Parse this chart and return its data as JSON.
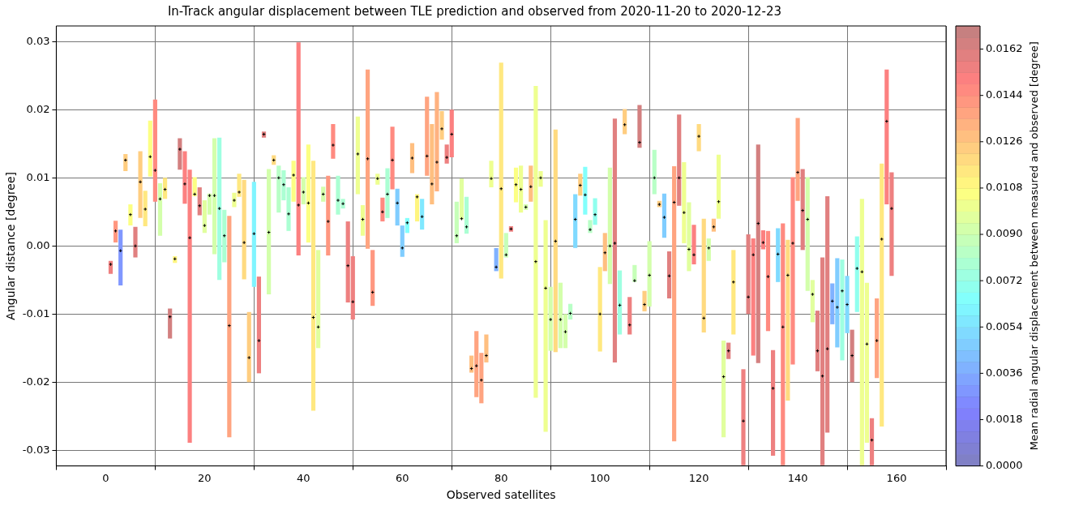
{
  "chart_data": {
    "type": "bar",
    "title": "In-Track angular displacement between TLE prediction and observed from 2020-11-20 to 2020-12-23",
    "xlabel": "Observed satellites",
    "ylabel": "Angular distance [degree]",
    "clabel": "Mean radial angular displacement between measured and observed [degree]",
    "xlim": [
      0,
      160
    ],
    "xticks": [
      0,
      20,
      40,
      60,
      80,
      100,
      120,
      140,
      160
    ],
    "ylim": [
      -0.0323,
      0.0323
    ],
    "yticks": [
      -0.03,
      -0.02,
      -0.01,
      {
        "value": 0,
        "label": "0.00"
      },
      0.01,
      0.02,
      0.03
    ],
    "clim": [
      0,
      0.0171
    ],
    "cticks": [
      {
        "value": 0,
        "label": "0.0000"
      },
      0.0018,
      0.0036,
      0.0054,
      0.0072,
      {
        "value": 0.009,
        "label": "0.0090"
      },
      0.0108,
      0.0126,
      0.0144,
      0.0162
    ],
    "grid": true,
    "legend": false,
    "marker": "cross",
    "series": [
      {
        "type": "bar",
        "x": [
          1,
          2,
          3,
          4,
          5,
          6,
          7,
          8,
          9,
          10,
          11,
          12,
          13,
          14,
          15,
          16,
          17,
          18,
          19,
          20,
          21,
          22,
          23,
          24,
          25,
          26,
          27,
          28,
          29,
          30,
          31,
          32,
          33,
          34,
          35,
          36,
          37,
          38,
          39,
          40,
          41,
          42,
          43,
          44,
          45,
          46,
          47,
          48,
          49,
          50,
          51,
          52,
          53,
          54,
          55,
          56,
          57,
          58,
          59,
          60,
          61,
          62,
          63,
          64,
          65,
          66,
          67,
          68,
          69,
          70,
          71,
          72,
          73,
          74,
          75,
          76,
          77,
          78,
          79,
          80,
          81,
          82,
          83,
          84,
          85,
          86,
          87,
          88,
          89,
          90,
          91,
          92,
          93,
          94,
          95,
          96,
          97,
          98,
          99,
          100,
          101,
          102,
          103,
          104,
          105,
          106,
          107,
          108,
          109,
          110,
          111,
          112,
          113,
          114,
          115,
          116,
          117,
          118,
          119,
          120,
          121,
          122,
          123,
          124,
          125,
          126,
          127,
          129,
          130,
          131,
          132,
          133,
          134,
          135,
          136,
          137,
          138,
          139,
          140,
          141,
          142,
          143,
          144,
          145,
          146,
          147,
          148,
          149,
          150,
          151,
          152,
          153,
          154,
          155,
          156,
          157,
          158,
          159
        ],
        "base": [
          -0.0041,
          0.0005,
          -0.0058,
          0.011,
          0.003,
          -0.0017,
          0.0041,
          0.0029,
          0.0102,
          0.0065,
          0.0015,
          0.0069,
          -0.0136,
          -0.0025,
          0.0112,
          0.0062,
          -0.0289,
          0.0073,
          0.0045,
          0.0019,
          0.0046,
          -0.0012,
          -0.005,
          -0.0024,
          -0.0281,
          0.0057,
          0.0072,
          -0.0049,
          -0.02,
          -0.006,
          -0.0187,
          0.0159,
          -0.0071,
          0.0119,
          0.0049,
          0.0067,
          0.0022,
          0.0065,
          -0.0014,
          0.0061,
          0.0005,
          -0.0242,
          -0.015,
          0.0065,
          -0.0014,
          0.0128,
          0.0046,
          0.0055,
          -0.0083,
          -0.0108,
          0.0076,
          0.0015,
          -0.0004,
          -0.0088,
          0.009,
          0.0036,
          0.0041,
          0.0083,
          0.003,
          -0.0016,
          0.0019,
          0.0107,
          0.0036,
          0.0024,
          0.0103,
          0.0061,
          0.008,
          0.0156,
          0.0121,
          0.013,
          0.0004,
          0.0039,
          0.0018,
          -0.0186,
          -0.0222,
          -0.0231,
          -0.0171,
          0.0086,
          -0.0037,
          -0.0048,
          -0.0017,
          0.0021,
          0.0064,
          0.0049,
          0.0053,
          0.0065,
          -0.0223,
          0.0087,
          -0.0273,
          -0.0154,
          -0.0156,
          -0.015,
          -0.015,
          -0.0108,
          -0.0003,
          0.0074,
          0.0046,
          0.0019,
          0.0031,
          -0.0155,
          -0.0037,
          -0.0056,
          -0.0171,
          -0.013,
          0.0164,
          -0.013,
          -0.0053,
          0.0144,
          -0.0096,
          -0.0089,
          0.0076,
          0.0057,
          0.0012,
          -0.0077,
          -0.0287,
          0.0059,
          0.0004,
          -0.0037,
          -0.0027,
          0.0139,
          -0.0127,
          -0.0022,
          0.0021,
          0.004,
          -0.0281,
          -0.0166,
          -0.013,
          -0.0322,
          -0.01,
          -0.0161,
          -0.0172,
          -0.0005,
          -0.0125,
          -0.0308,
          -0.0053,
          -0.0322,
          -0.0227,
          -0.0174,
          0.0066,
          -0.0006,
          -0.0066,
          -0.0112,
          -0.0184,
          -0.0322,
          -0.0274,
          -0.0115,
          -0.0149,
          -0.0168,
          -0.0128,
          -0.02,
          -0.0097,
          -0.0322,
          -0.0289,
          -0.0322,
          -0.0194,
          -0.0265,
          0.0061,
          -0.0044
        ],
        "values": [
          0.0019,
          0.0032,
          0.0082,
          0.0025,
          0.0031,
          0.0045,
          0.0098,
          0.0052,
          0.0082,
          0.015,
          0.0077,
          0.0031,
          0.0044,
          0.001,
          0.0046,
          0.0077,
          0.0401,
          0.0028,
          0.0041,
          0.0048,
          0.0031,
          0.017,
          0.0209,
          0.0077,
          0.0325,
          0.0021,
          0.0034,
          0.0146,
          0.0103,
          0.0154,
          0.0142,
          0.0009,
          0.0184,
          0.0014,
          0.0069,
          0.0044,
          0.0064,
          0.006,
          0.0313,
          0.004,
          0.0144,
          0.0367,
          0.0144,
          0.0022,
          0.0117,
          0.0051,
          0.0057,
          0.0014,
          0.0119,
          0.0093,
          0.0114,
          0.0045,
          0.0263,
          0.0082,
          0.0016,
          0.0035,
          0.0073,
          0.0092,
          0.0054,
          0.0046,
          0.0022,
          0.0044,
          0.004,
          0.0045,
          0.0116,
          0.0118,
          0.0146,
          0.0042,
          0.0028,
          0.007,
          0.0061,
          0.006,
          0.0054,
          0.0025,
          0.0097,
          0.0074,
          0.0041,
          0.0039,
          0.0034,
          0.0317,
          0.0036,
          0.0008,
          0.0051,
          0.0069,
          0.0008,
          0.0053,
          0.0458,
          0.0023,
          0.0311,
          0.0094,
          0.0327,
          0.0096,
          0.005,
          0.0023,
          0.0079,
          0.0032,
          0.007,
          0.0019,
          0.0039,
          0.0124,
          0.0056,
          0.0171,
          0.0358,
          0.0094,
          0.0037,
          0.0055,
          0.0025,
          0.0063,
          0.003,
          0.0096,
          0.0065,
          0.0009,
          0.0065,
          0.0069,
          0.0404,
          0.0134,
          0.0119,
          0.0101,
          0.0058,
          0.004,
          0.0167,
          0.0033,
          0.0019,
          0.0094,
          0.0142,
          0.0024,
          0.0124,
          0.0141,
          0.0117,
          0.0172,
          0.0321,
          0.0028,
          0.0147,
          0.0155,
          0.0079,
          0.0355,
          0.0236,
          0.0275,
          0.0122,
          0.0119,
          0.0167,
          0.0062,
          0.0089,
          0.0305,
          0.0347,
          0.006,
          0.0131,
          0.0148,
          0.0084,
          0.0077,
          0.0111,
          0.0391,
          0.0235,
          0.0069,
          0.0117,
          0.0386,
          0.0198,
          0.0152
        ],
        "colors": [
          "#ee8080",
          "#ff9780",
          "#8097ff",
          "#ffcd80",
          "#fcff83",
          "#e18080",
          "#ffcd80",
          "#ffe880",
          "#fcff83",
          "#ff8a80",
          "#d3ffab",
          "#ffe880",
          "#d38080",
          "#fff580",
          "#d38080",
          "#fc8080",
          "#fc8080",
          "#fcff83",
          "#e18080",
          "#e1ff9e",
          "#d3ffab",
          "#d3ffab",
          "#9effe1",
          "#abffd3",
          "#ffa480",
          "#eeff90",
          "#ffe880",
          "#ffda80",
          "#ffcd80",
          "#80f5ff",
          "#ee8080",
          "#e18080",
          "#d3ffab",
          "#ffda80",
          "#b8ffc6",
          "#abffd3",
          "#abffd3",
          "#fcff83",
          "#fc8080",
          "#d3ffab",
          "#fcff83",
          "#ffe880",
          "#e1ff9e",
          "#d3ffab",
          "#ff9780",
          "#ff8a80",
          "#abffd3",
          "#abffd3",
          "#ee8080",
          "#ee8080",
          "#eeff90",
          "#eeff90",
          "#ffa480",
          "#ff9780",
          "#eeff90",
          "#ff8a80",
          "#abffd3",
          "#ff8a80",
          "#80cdff",
          "#80cdff",
          "#83fffc",
          "#ffbf80",
          "#fff580",
          "#80e8ff",
          "#ffa480",
          "#ffbf80",
          "#ffb280",
          "#ffcd80",
          "#ee8080",
          "#fc8080",
          "#c6ffb8",
          "#e1ff9e",
          "#abffd3",
          "#ffbf80",
          "#ffa480",
          "#ffa480",
          "#ffbf80",
          "#eeff90",
          "#80b2ff",
          "#ffe880",
          "#c6ffb8",
          "#ee8080",
          "#fcff83",
          "#eeff90",
          "#d3ffab",
          "#ffbf80",
          "#eeff90",
          "#eeff90",
          "#eeff90",
          "#d3ffab",
          "#ffda80",
          "#d3ffab",
          "#d3ffab",
          "#b8ffc6",
          "#80daff",
          "#ffcd80",
          "#83fffc",
          "#b8ffc6",
          "#90ffee",
          "#ffe880",
          "#ffbf80",
          "#d3ffab",
          "#e18080",
          "#9effe1",
          "#ffcd80",
          "#ee8080",
          "#c6ffb8",
          "#d38080",
          "#ffcd80",
          "#d3ffab",
          "#b8ffc6",
          "#ffcd80",
          "#80cdff",
          "#e18080",
          "#ffa480",
          "#e18080",
          "#eeff90",
          "#e1ff9e",
          "#fc8080",
          "#ffda80",
          "#ffda80",
          "#d3ffab",
          "#ffbf80",
          "#eeff90",
          "#e1ff9e",
          "#e18080",
          "#ffe880",
          "#ee8080",
          "#e18080",
          "#fc8080",
          "#d38080",
          "#fc8080",
          "#ff8a80",
          "#ee8080",
          "#80daff",
          "#ff8a80",
          "#ffda80",
          "#ff8a80",
          "#ffa480",
          "#e18080",
          "#d3ffab",
          "#e1ff9e",
          "#e18080",
          "#e18080",
          "#e18080",
          "#80b2ff",
          "#80cdff",
          "#9effe1",
          "#80daff",
          "#d38080",
          "#90ffee",
          "#eeff90",
          "#eeff90",
          "#ee8080",
          "#ffa480",
          "#ffe880",
          "#fc8080",
          "#ee8080"
        ]
      },
      {
        "type": "scatter",
        "color": "#000000",
        "x": [
          1,
          2,
          3,
          4,
          5,
          6,
          7,
          8,
          9,
          10,
          11,
          12,
          13,
          14,
          15,
          16,
          17,
          18,
          19,
          20,
          21,
          22,
          23,
          24,
          25,
          26,
          27,
          28,
          29,
          30,
          31,
          32,
          33,
          34,
          35,
          36,
          37,
          38,
          39,
          40,
          41,
          42,
          43,
          44,
          45,
          46,
          47,
          48,
          49,
          50,
          51,
          52,
          53,
          54,
          55,
          56,
          57,
          58,
          59,
          60,
          61,
          62,
          63,
          64,
          65,
          66,
          67,
          68,
          69,
          70,
          71,
          72,
          73,
          74,
          75,
          76,
          77,
          78,
          79,
          80,
          81,
          82,
          83,
          84,
          85,
          86,
          87,
          88,
          89,
          90,
          91,
          92,
          93,
          94,
          95,
          96,
          97,
          98,
          99,
          100,
          101,
          102,
          103,
          104,
          105,
          106,
          107,
          108,
          109,
          110,
          111,
          112,
          113,
          114,
          115,
          116,
          117,
          118,
          119,
          120,
          121,
          122,
          123,
          124,
          125,
          126,
          127,
          129,
          130,
          131,
          132,
          133,
          134,
          135,
          136,
          137,
          138,
          139,
          140,
          141,
          142,
          143,
          144,
          145,
          146,
          147,
          148,
          149,
          150,
          151,
          152,
          153,
          154,
          155,
          156,
          157,
          158,
          159
        ],
        "values": [
          -0.0027,
          0.0022,
          -0.0007,
          0.0126,
          0.0046,
          0,
          0.0094,
          0.0054,
          0.0131,
          0.0111,
          0.0069,
          0.0083,
          -0.0104,
          -0.0019,
          0.0142,
          0.0091,
          0.0012,
          0.0076,
          0.0059,
          0.003,
          0.0074,
          0.0074,
          0.0055,
          0.0015,
          -0.0117,
          0.0067,
          0.0079,
          0.0005,
          -0.0164,
          0.0018,
          -0.0139,
          0.0164,
          0.002,
          0.0126,
          0.01,
          0.009,
          0.0047,
          0.0104,
          0.006,
          0.0079,
          0.0063,
          -0.0105,
          -0.0119,
          0.0076,
          0.0036,
          0.0148,
          0.0067,
          0.0062,
          -0.0029,
          -0.0082,
          0.0135,
          0.0039,
          0.0128,
          -0.0068,
          0.0099,
          0.005,
          0.0076,
          0.0126,
          0.0063,
          -0.0003,
          0.0034,
          0.0129,
          0.0072,
          0.0043,
          0.0132,
          0.0091,
          0.0123,
          0.0172,
          0.013,
          0.0164,
          0.0015,
          0.004,
          0.0028,
          -0.018,
          -0.0176,
          -0.0197,
          -0.0161,
          0.0099,
          -0.0031,
          0.0084,
          -0.0013,
          0.0025,
          0.009,
          0.0083,
          0.0057,
          0.0087,
          -0.0023,
          0.01,
          -0.0062,
          -0.0108,
          0.0007,
          -0.0108,
          -0.0126,
          -0.0099,
          0.0039,
          0.0089,
          0.0075,
          0.0024,
          0.0046,
          -0.01,
          -0.001,
          0,
          0.0004,
          -0.0087,
          0.0178,
          -0.0116,
          -0.0051,
          0.0152,
          -0.0086,
          -0.0043,
          0.01,
          0.0061,
          0.0042,
          -0.0044,
          0.0064,
          0.01,
          0.0049,
          -0.0005,
          -0.0013,
          0.0161,
          -0.0106,
          -0.0003,
          0.0028,
          0.0065,
          -0.0192,
          -0.0154,
          -0.0053,
          -0.0257,
          -0.0075,
          -0.0013,
          0.0033,
          0.0005,
          -0.0045,
          -0.0209,
          -0.0012,
          -0.0119,
          -0.0043,
          0.0004,
          0.0108,
          0.0052,
          0.0039,
          -0.0071,
          -0.0154,
          -0.0191,
          -0.0151,
          -0.0081,
          -0.009,
          -0.0066,
          -0.0086,
          -0.0161,
          -0.0033,
          -0.0038,
          -0.0144,
          -0.0285,
          -0.0139,
          0.001,
          0.0183,
          0.0055
        ]
      }
    ]
  }
}
